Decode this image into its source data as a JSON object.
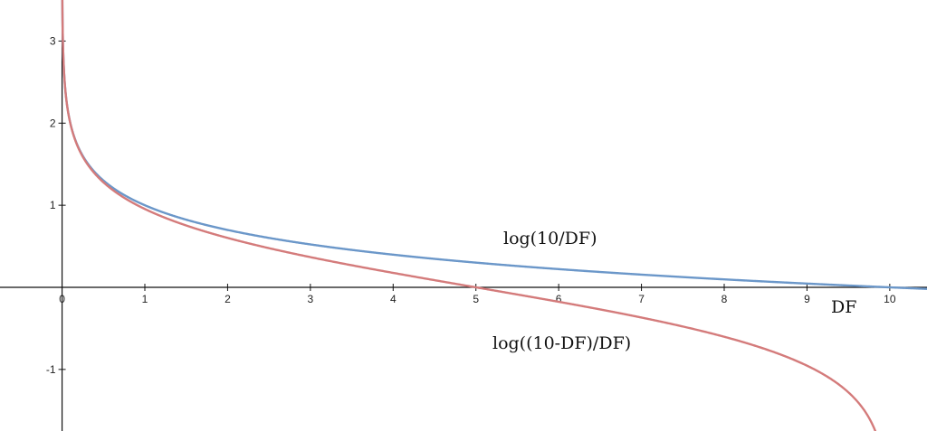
{
  "chart_data": {
    "type": "line",
    "xlabel": "DF",
    "ylabel": "",
    "xlim": [
      -0.75,
      10.45
    ],
    "ylim": [
      -1.75,
      3.5
    ],
    "grid": false,
    "x_ticks": [
      "0",
      "1",
      "2",
      "3",
      "4",
      "5",
      "6",
      "7",
      "8",
      "9",
      "10"
    ],
    "y_ticks": [
      "-1",
      "1",
      "2",
      "3"
    ],
    "series": [
      {
        "name": "log(10/DF)",
        "color": "#6b97c9",
        "formula": "log10(10/x)",
        "x_domain": [
          0.003,
          10.45
        ],
        "points": [
          [
            0.05,
            2.3
          ],
          [
            0.1,
            2.0
          ],
          [
            0.25,
            1.6
          ],
          [
            0.5,
            1.3
          ],
          [
            1,
            1.0
          ],
          [
            2,
            0.7
          ],
          [
            3,
            0.52
          ],
          [
            5,
            0.3
          ],
          [
            7,
            0.15
          ],
          [
            10,
            0
          ]
        ]
      },
      {
        "name": "log((10-DF)/DF)",
        "color": "#d47b7b",
        "formula": "log10((10-x)/x)",
        "x_domain": [
          0.003,
          9.85
        ],
        "points": [
          [
            0.05,
            2.3
          ],
          [
            0.25,
            1.59
          ],
          [
            0.5,
            1.28
          ],
          [
            1,
            0.95
          ],
          [
            2,
            0.6
          ],
          [
            3,
            0.37
          ],
          [
            5,
            0
          ],
          [
            7,
            -0.37
          ],
          [
            8,
            -0.6
          ],
          [
            9,
            -0.95
          ],
          [
            9.8,
            -1.69
          ]
        ]
      }
    ]
  }
}
